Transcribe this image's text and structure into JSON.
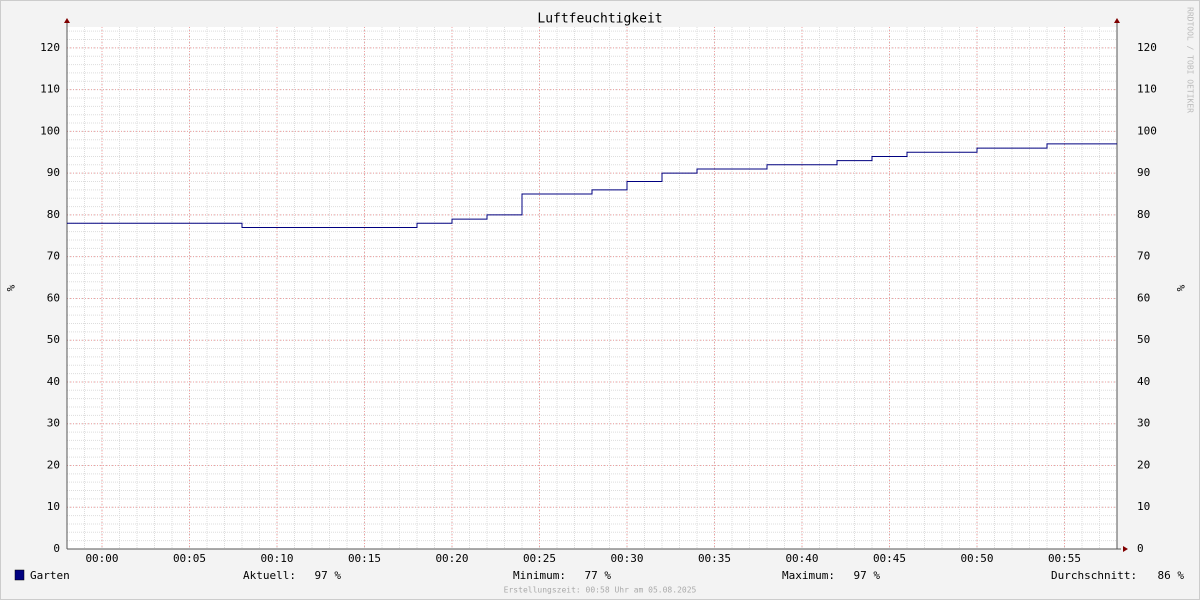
{
  "chart_data": {
    "type": "step",
    "title": "Luftfeuchtigkeit",
    "y_label": "%",
    "watermark": "RRDTOOL / TOBI OETIKER",
    "footer": "Erstellungszeit: 00:58 Uhr am 05.08.2025",
    "xlim": [
      "23:58",
      "00:58"
    ],
    "xticks": [
      "00:00",
      "00:05",
      "00:10",
      "00:15",
      "00:20",
      "00:25",
      "00:30",
      "00:35",
      "00:40",
      "00:45",
      "00:50",
      "00:55"
    ],
    "ylim": [
      0,
      125
    ],
    "yticks": [
      0,
      10,
      20,
      30,
      40,
      50,
      60,
      70,
      80,
      90,
      100,
      110,
      120
    ],
    "grid": true,
    "series": [
      {
        "name": "Garten",
        "color": "#000080",
        "x": [
          "23:58",
          "00:08",
          "00:18",
          "00:20",
          "00:22",
          "00:24",
          "00:28",
          "00:30",
          "00:32",
          "00:34",
          "00:38",
          "00:42",
          "00:44",
          "00:46",
          "00:50",
          "00:54",
          "00:58"
        ],
        "values": [
          78,
          77,
          78,
          79,
          80,
          85,
          86,
          88,
          90,
          91,
          92,
          93,
          94,
          95,
          96,
          97,
          97
        ]
      }
    ],
    "stats": [
      {
        "label": "Aktuell:",
        "value": "97 %"
      },
      {
        "label": "Minimum:",
        "value": "77 %"
      },
      {
        "label": "Maximum:",
        "value": "97 %"
      },
      {
        "label": "Durchschnitt:",
        "value": "86 %"
      }
    ]
  }
}
